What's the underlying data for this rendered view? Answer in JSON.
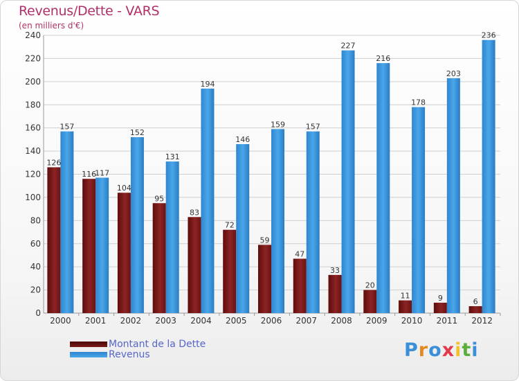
{
  "header": {
    "title": "Revenus/Dette - VARS",
    "subtitle": "(en milliers d'€)"
  },
  "colors": {
    "debt": "#7a1a1a",
    "revenue": "#3a96dd",
    "title": "#b0306a",
    "legend_text": "#5566c8"
  },
  "chart_data": {
    "type": "bar",
    "title": "Revenus/Dette - VARS",
    "ylabel": "(en milliers d'€)",
    "xlabel": "",
    "categories": [
      "2000",
      "2001",
      "2002",
      "2003",
      "2004",
      "2005",
      "2006",
      "2007",
      "2008",
      "2009",
      "2010",
      "2011",
      "2012"
    ],
    "series": [
      {
        "name": "Montant de la Dette",
        "values": [
          126,
          116,
          104,
          95,
          83,
          72,
          59,
          47,
          33,
          20,
          11,
          9,
          6
        ]
      },
      {
        "name": "Revenus",
        "values": [
          157,
          117,
          152,
          131,
          194,
          146,
          159,
          157,
          227,
          216,
          178,
          203,
          236
        ]
      }
    ],
    "ylim": [
      0,
      240
    ],
    "yticks": [
      0,
      20,
      40,
      60,
      80,
      100,
      120,
      140,
      160,
      180,
      200,
      220,
      240
    ],
    "grid": true,
    "legend": "bottom-left"
  },
  "legend": {
    "items": [
      {
        "label": "Montant de la Dette",
        "color": "#7a1a1a"
      },
      {
        "label": "Revenus",
        "color": "#3a96dd"
      }
    ]
  },
  "logo": {
    "text": "Proxiti",
    "letters": [
      "P",
      "r",
      "o",
      "x",
      "i",
      "t",
      "i"
    ],
    "letter_colors": [
      "#3a8fd8",
      "#e4891f",
      "#3a8fd8",
      "#e13a4b",
      "#f2c12e",
      "#5aae3c",
      "#3a8fd8"
    ]
  }
}
